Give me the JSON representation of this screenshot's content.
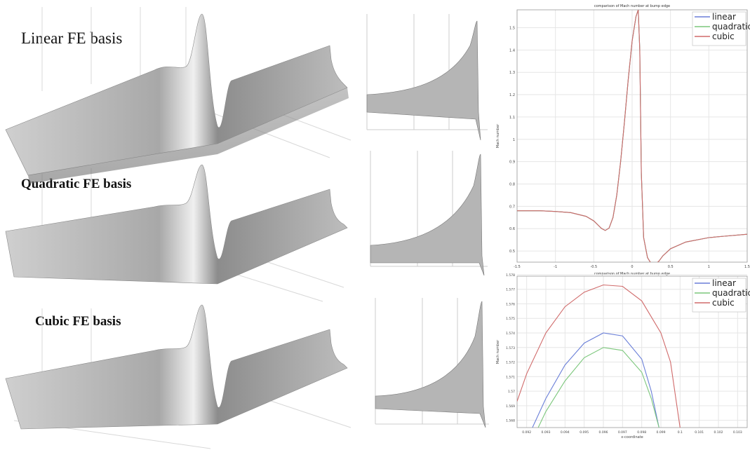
{
  "labels": {
    "linear": "Linear FE basis",
    "quadratic": "Quadratic FE basis",
    "cubic": "Cubic FE basis"
  },
  "surface_color": "#c8c8c8",
  "chart_data": [
    {
      "type": "line",
      "title": "comparison of Mach number at bump edge",
      "xlabel": "",
      "ylabel": "Mach number",
      "xlim": [
        -1.5,
        1.5
      ],
      "ylim": [
        0.45,
        1.58
      ],
      "xticks": [
        "-1.5",
        "-1",
        "-0.5",
        "0",
        "0.5",
        "1",
        "1.5"
      ],
      "xtick_values": [
        -1.5,
        -1,
        -0.5,
        0,
        0.5,
        1,
        1.5
      ],
      "yticks": [
        "0.5",
        "0.6",
        "0.7",
        "0.8",
        "0.9",
        "1",
        "1.1",
        "1.2",
        "1.3",
        "1.4",
        "1.5"
      ],
      "ytick_values": [
        0.5,
        0.6,
        0.7,
        0.8,
        0.9,
        1,
        1.1,
        1.2,
        1.3,
        1.4,
        1.5
      ],
      "grid": true,
      "legend": "top-right",
      "x": [
        -1.5,
        -1.2,
        -1.0,
        -0.8,
        -0.6,
        -0.5,
        -0.45,
        -0.4,
        -0.35,
        -0.3,
        -0.25,
        -0.2,
        -0.15,
        -0.1,
        -0.05,
        0.0,
        0.05,
        0.08,
        0.1,
        0.12,
        0.15,
        0.2,
        0.25,
        0.3,
        0.35,
        0.4,
        0.5,
        0.7,
        1.0,
        1.2,
        1.5
      ],
      "series": [
        {
          "name": "linear",
          "color": "#6a7fd8",
          "values": [
            0.68,
            0.68,
            0.677,
            0.672,
            0.655,
            0.635,
            0.618,
            0.601,
            0.592,
            0.603,
            0.65,
            0.75,
            0.9,
            1.08,
            1.27,
            1.44,
            1.55,
            1.58,
            1.4,
            0.85,
            0.56,
            0.47,
            0.443,
            0.44,
            0.455,
            0.478,
            0.51,
            0.54,
            0.56,
            0.566,
            0.575
          ]
        },
        {
          "name": "quadratic",
          "color": "#7cc77c",
          "values": [
            0.68,
            0.68,
            0.677,
            0.672,
            0.655,
            0.635,
            0.618,
            0.601,
            0.592,
            0.603,
            0.65,
            0.75,
            0.9,
            1.08,
            1.27,
            1.44,
            1.55,
            1.58,
            1.4,
            0.85,
            0.56,
            0.47,
            0.443,
            0.44,
            0.455,
            0.478,
            0.51,
            0.54,
            0.56,
            0.566,
            0.575
          ]
        },
        {
          "name": "cubic",
          "color": "#d06a6a",
          "values": [
            0.68,
            0.68,
            0.677,
            0.672,
            0.655,
            0.635,
            0.618,
            0.601,
            0.592,
            0.603,
            0.65,
            0.75,
            0.9,
            1.08,
            1.27,
            1.44,
            1.55,
            1.58,
            1.4,
            0.85,
            0.56,
            0.47,
            0.443,
            0.44,
            0.455,
            0.478,
            0.51,
            0.54,
            0.56,
            0.566,
            0.575
          ]
        }
      ]
    },
    {
      "type": "line",
      "title": "comparison of Mach number at bump edge",
      "xlabel": "x-coordinate",
      "ylabel": "Mach number",
      "xlim": [
        0.0915,
        0.1035
      ],
      "ylim": [
        1.5675,
        1.5779
      ],
      "xticks": [
        "0.092",
        "0.093",
        "0.094",
        "0.095",
        "0.096",
        "0.097",
        "0.098",
        "0.099",
        "0.1",
        "0.101",
        "0.102",
        "0.103"
      ],
      "xtick_values": [
        0.092,
        0.093,
        0.094,
        0.095,
        0.096,
        0.097,
        0.098,
        0.099,
        0.1,
        0.101,
        0.102,
        0.103
      ],
      "yticks": [
        "1.568",
        "1.569",
        "1.57",
        "1.571",
        "1.572",
        "1.573",
        "1.574",
        "1.575",
        "1.576",
        "1.577",
        "1.578"
      ],
      "ytick_values": [
        1.568,
        1.569,
        1.57,
        1.571,
        1.572,
        1.573,
        1.574,
        1.575,
        1.576,
        1.577,
        1.578
      ],
      "grid": true,
      "legend": "top-right",
      "series": [
        {
          "name": "linear",
          "color": "#6a7fd8",
          "x": [
            0.0923,
            0.093,
            0.094,
            0.095,
            0.096,
            0.097,
            0.098,
            0.0985,
            0.0989
          ],
          "values": [
            1.5675,
            1.5695,
            1.5718,
            1.5733,
            1.574,
            1.5738,
            1.5722,
            1.57,
            1.5675
          ]
        },
        {
          "name": "quadratic",
          "color": "#7cc77c",
          "x": [
            0.0926,
            0.093,
            0.094,
            0.095,
            0.096,
            0.097,
            0.098,
            0.0985,
            0.0989
          ],
          "values": [
            1.5675,
            1.5686,
            1.5707,
            1.5723,
            1.573,
            1.5728,
            1.5713,
            1.5695,
            1.5675
          ]
        },
        {
          "name": "cubic",
          "color": "#d06a6a",
          "x": [
            0.0915,
            0.092,
            0.093,
            0.094,
            0.095,
            0.096,
            0.097,
            0.098,
            0.099,
            0.0995,
            0.1
          ],
          "values": [
            1.5693,
            1.5712,
            1.574,
            1.5758,
            1.5768,
            1.5773,
            1.5772,
            1.5762,
            1.574,
            1.572,
            1.5675
          ]
        }
      ]
    }
  ]
}
